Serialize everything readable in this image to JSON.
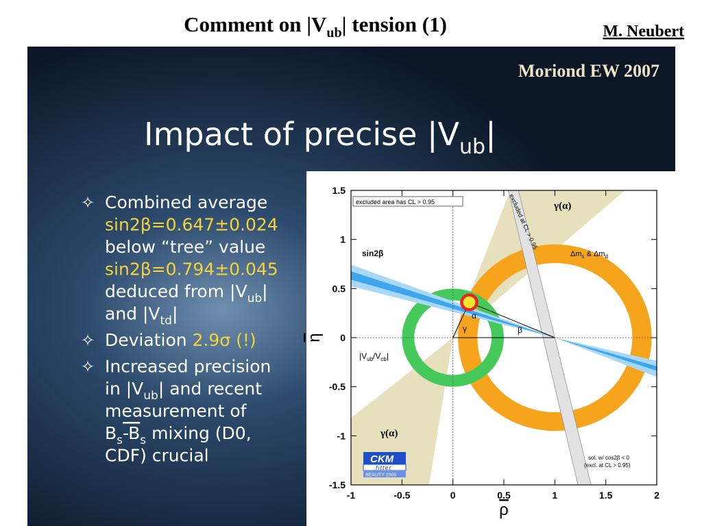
{
  "header": {
    "title": [
      "Comment on |V",
      "ub",
      "| tension (1)"
    ],
    "author": "M. Neubert",
    "event": "Moriond EW 2007"
  },
  "slide": {
    "heading": [
      "Impact of precise |V",
      "ub",
      "|"
    ],
    "bullets": [
      {
        "lines": [
          [
            "Combined average"
          ],
          [
            "sin2β=0.647±0.024"
          ],
          [
            "below “tree” value"
          ],
          [
            "sin2β=0.794±0.045"
          ],
          [
            "deduced from |V",
            "ub",
            "|"
          ],
          [
            "and |V",
            "td",
            "|"
          ]
        ]
      },
      {
        "lines": [
          [
            "Deviation ",
            "2.9σ (!)"
          ]
        ]
      },
      {
        "lines": [
          [
            "Increased precision"
          ],
          [
            "in |V",
            "ub",
            "| and recent"
          ],
          [
            "measurement of"
          ],
          [
            "B",
            "s",
            "-B",
            "s",
            " mixing (D0,"
          ],
          [
            "CDF) crucial"
          ]
        ]
      }
    ]
  },
  "plot": {
    "xlabel": "ρ",
    "ylabel": "η",
    "xlim": [
      -1,
      2
    ],
    "ylim": [
      -1.5,
      1.5
    ],
    "xticks": [
      -1,
      -0.5,
      0,
      0.5,
      1,
      1.5,
      2
    ],
    "yticks": [
      -1.5,
      -1,
      -0.5,
      0,
      0.5,
      1,
      1.5
    ],
    "labels": {
      "excluded_area": "excluded area has CL > 0.95",
      "excluded_at": "excluded at CL > 0.95",
      "gamma_alpha": "γ(α)",
      "dm": "Δm",
      "dm_s": "s",
      "dm_and": " & Δm",
      "dm_d": "d",
      "sin2b": "sin2β",
      "alpha": "α",
      "gamma": "γ",
      "beta": "β",
      "vub": "|V",
      "vub_sub": "ub",
      "vub_mid": "/V",
      "vcb_sub": "cb",
      "vub_end": "|",
      "sol": "sol. w/ cos2β < 0",
      "sol_excl": "(excl. at CL > 0.95)",
      "ckm": "CKM",
      "fitter": "fitter",
      "beauty": "BEAUTY 2006"
    }
  }
}
